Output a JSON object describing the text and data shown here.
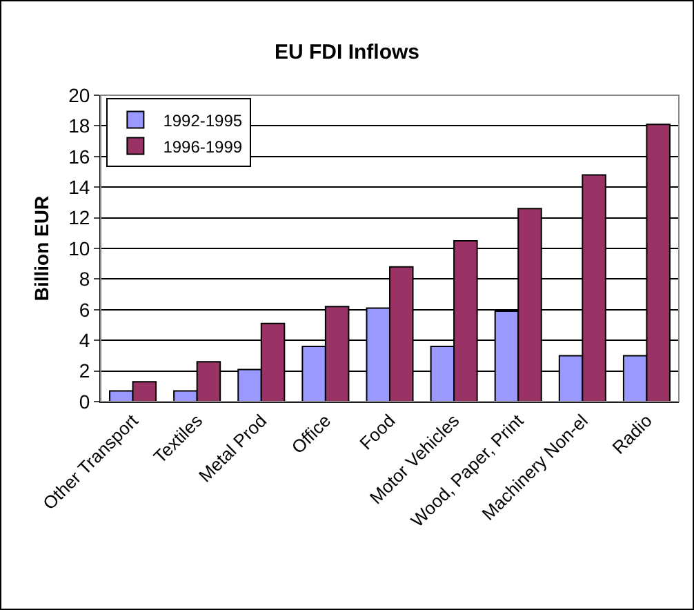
{
  "chart_data": {
    "type": "bar",
    "title": "EU FDI Inflows",
    "ylabel": "Billion EUR",
    "categories": [
      "Other Transport",
      "Textiles",
      "Metal Prod",
      "Office",
      "Food",
      "Motor Vehicles",
      "Wood, Paper, Print",
      "Machinery Non-el",
      "Radio"
    ],
    "series": [
      {
        "name": "1992-1995",
        "color": "#9999ff",
        "values": [
          0.7,
          0.7,
          2.1,
          3.6,
          6.1,
          3.6,
          5.9,
          3.0,
          3.0
        ]
      },
      {
        "name": "1996-1999",
        "color": "#993366",
        "values": [
          1.3,
          2.6,
          5.1,
          6.2,
          8.8,
          10.5,
          12.6,
          14.8,
          18.1
        ]
      }
    ],
    "ylim": [
      0,
      20
    ],
    "yticks": [
      0,
      2,
      4,
      6,
      8,
      10,
      12,
      14,
      16,
      18,
      20
    ],
    "grid": "y",
    "legend": "top left"
  }
}
